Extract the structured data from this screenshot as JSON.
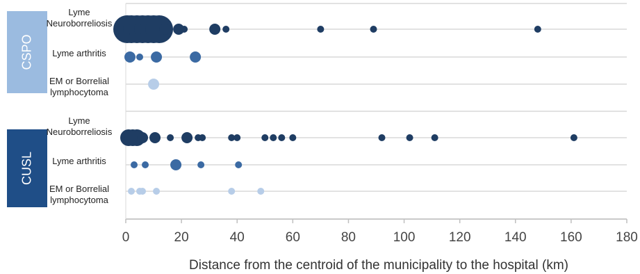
{
  "chart_data": {
    "type": "scatter",
    "xlabel": "Distance from the centroid of the municipality to the hospital (km)",
    "xlim": [
      0,
      180
    ],
    "xticks": [
      0,
      20,
      40,
      60,
      80,
      100,
      120,
      140,
      160,
      180
    ],
    "grid": true,
    "groups": [
      {
        "name": "CSPO",
        "color": "#9bbbe0",
        "rows": [
          {
            "label": "Lyme Neuroborreliosis",
            "color": "#1f3d63",
            "points": [
              [
                0.5,
                5
              ],
              [
                2,
                5
              ],
              [
                4,
                5
              ],
              [
                6,
                5
              ],
              [
                8,
                5
              ],
              [
                10,
                5
              ],
              [
                12,
                5
              ],
              [
                14,
                2
              ],
              [
                19,
                2
              ],
              [
                21,
                1
              ],
              [
                32,
                2
              ],
              [
                36,
                1
              ],
              [
                70,
                1
              ],
              [
                89,
                1
              ],
              [
                148,
                1
              ]
            ]
          },
          {
            "label": "Lyme arthritis",
            "color": "#3b6aa3",
            "points": [
              [
                1.5,
                2
              ],
              [
                5,
                1
              ],
              [
                11,
                2
              ],
              [
                25,
                2
              ]
            ]
          },
          {
            "label": "EM or Borrelial lymphocytoma",
            "color": "#b7cde8",
            "points": [
              [
                10,
                2
              ]
            ]
          }
        ]
      },
      {
        "name": "CUSL",
        "color": "#1f4e87",
        "rows": [
          {
            "label": "Lyme Neuroborreliosis",
            "color": "#1f3d63",
            "points": [
              [
                1,
                3
              ],
              [
                2.5,
                3
              ],
              [
                4,
                3
              ],
              [
                6,
                2
              ],
              [
                10.5,
                2
              ],
              [
                16,
                1
              ],
              [
                22,
                2
              ],
              [
                26,
                1
              ],
              [
                27.5,
                1
              ],
              [
                38,
                1
              ],
              [
                40,
                1
              ],
              [
                50,
                1
              ],
              [
                53,
                1
              ],
              [
                56,
                1
              ],
              [
                60,
                1
              ],
              [
                92,
                1
              ],
              [
                102,
                1
              ],
              [
                111,
                1
              ],
              [
                161,
                1
              ]
            ]
          },
          {
            "label": "Lyme arthritis",
            "color": "#3b6aa3",
            "points": [
              [
                3,
                1
              ],
              [
                7,
                1
              ],
              [
                18,
                2
              ],
              [
                27,
                1
              ],
              [
                40.5,
                1
              ]
            ]
          },
          {
            "label": "EM or Borrelial lymphocytoma",
            "color": "#b7cde8",
            "points": [
              [
                2,
                1
              ],
              [
                5,
                1
              ],
              [
                6,
                1
              ],
              [
                11,
                1
              ],
              [
                38,
                1
              ],
              [
                48.5,
                1
              ]
            ]
          }
        ]
      }
    ]
  },
  "labels": {
    "group1": "CSPO",
    "group2": "CUSL",
    "g1_row1": "Lyme\nNeuroborreliosis",
    "g1_row2": "Lyme arthritis",
    "g1_row3": "EM or Borrelial\nlymphocytoma",
    "g2_row1": "Lyme\nNeuroborreliosis",
    "g2_row2": "Lyme arthritis",
    "g2_row3": "EM or Borrelial\nlymphocytoma"
  }
}
